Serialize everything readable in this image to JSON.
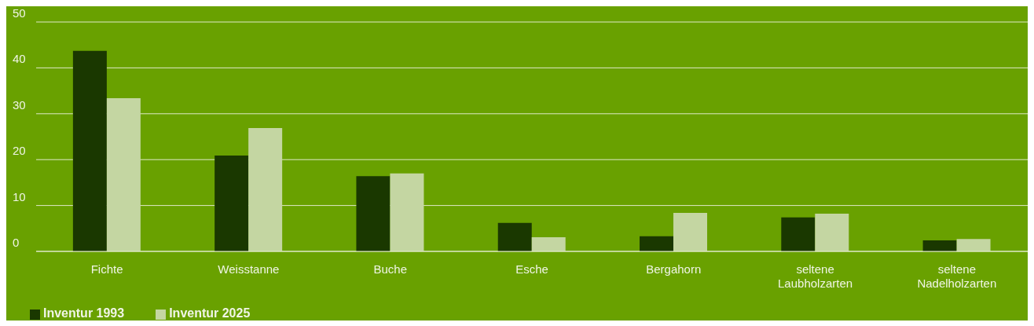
{
  "chart_data": {
    "type": "bar",
    "categories": [
      "Fichte",
      "Weisstanne",
      "Buche",
      "Esche",
      "Bergahorn",
      "seltene Laubholzarten",
      "seltene Nadelholzarten"
    ],
    "series": [
      {
        "name": "Inventur 1993",
        "color": "#1a3800",
        "values": [
          43.7,
          20.9,
          16.4,
          6.2,
          3.3,
          7.4,
          2.4
        ]
      },
      {
        "name": "Inventur 2025",
        "color": "#c4d6a2",
        "values": [
          33.4,
          26.9,
          17.0,
          3.1,
          8.4,
          8.2,
          2.7
        ]
      }
    ],
    "ylim": [
      0,
      50
    ],
    "yticks": [
      0,
      10,
      20,
      30,
      40,
      50
    ],
    "grid": "y",
    "legend": "bottom left"
  }
}
